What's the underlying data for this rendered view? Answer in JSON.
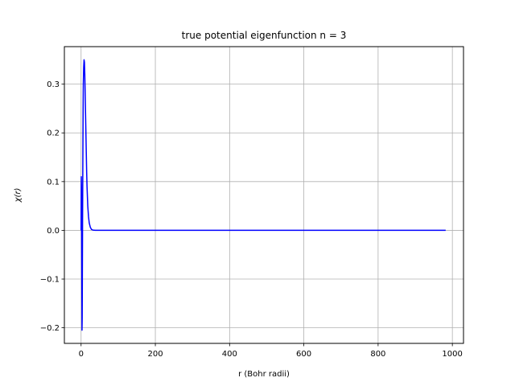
{
  "chart_data": {
    "type": "line",
    "title": "true potential eigenfunction n = 3",
    "xlabel": "r  (Bohr radii)",
    "ylabel": "χ(r)",
    "xlim": [
      -45,
      1030
    ],
    "ylim": [
      -0.232,
      0.377
    ],
    "grid": true,
    "xticks": [
      0,
      200,
      400,
      600,
      800,
      1000
    ],
    "xtick_labels": [
      "0",
      "200",
      "400",
      "600",
      "800",
      "1000"
    ],
    "yticks": [
      -0.2,
      -0.1,
      0.0,
      0.1,
      0.2,
      0.3
    ],
    "ytick_labels": [
      "−0.2",
      "−0.1",
      "0.0",
      "0.1",
      "0.2",
      "0.3"
    ],
    "series": [
      {
        "color": "#0000ff",
        "x": [
          0,
          0.5,
          1.0,
          1.5,
          2.0,
          2.5,
          3.0,
          3.5,
          4.0,
          4.5,
          5.0,
          5.5,
          6.0,
          7.0,
          8.0,
          9.0,
          10.0,
          11.0,
          12.0,
          13.0,
          14.0,
          15.0,
          16.0,
          18.0,
          20.0,
          22.0,
          25.0,
          28.0,
          32.0,
          38.0,
          50.0,
          100.0,
          300.0,
          600.0,
          982.0
        ],
        "y": [
          0.0,
          0.11,
          0.09,
          0.0,
          -0.1,
          -0.205,
          -0.18,
          -0.08,
          0.02,
          0.1,
          0.18,
          0.25,
          0.3,
          0.335,
          0.35,
          0.345,
          0.32,
          0.28,
          0.24,
          0.2,
          0.16,
          0.12,
          0.09,
          0.05,
          0.028,
          0.015,
          0.006,
          0.002,
          0.0005,
          0.0,
          0.0,
          0.0,
          0.0,
          0.0,
          0.0
        ]
      }
    ]
  }
}
